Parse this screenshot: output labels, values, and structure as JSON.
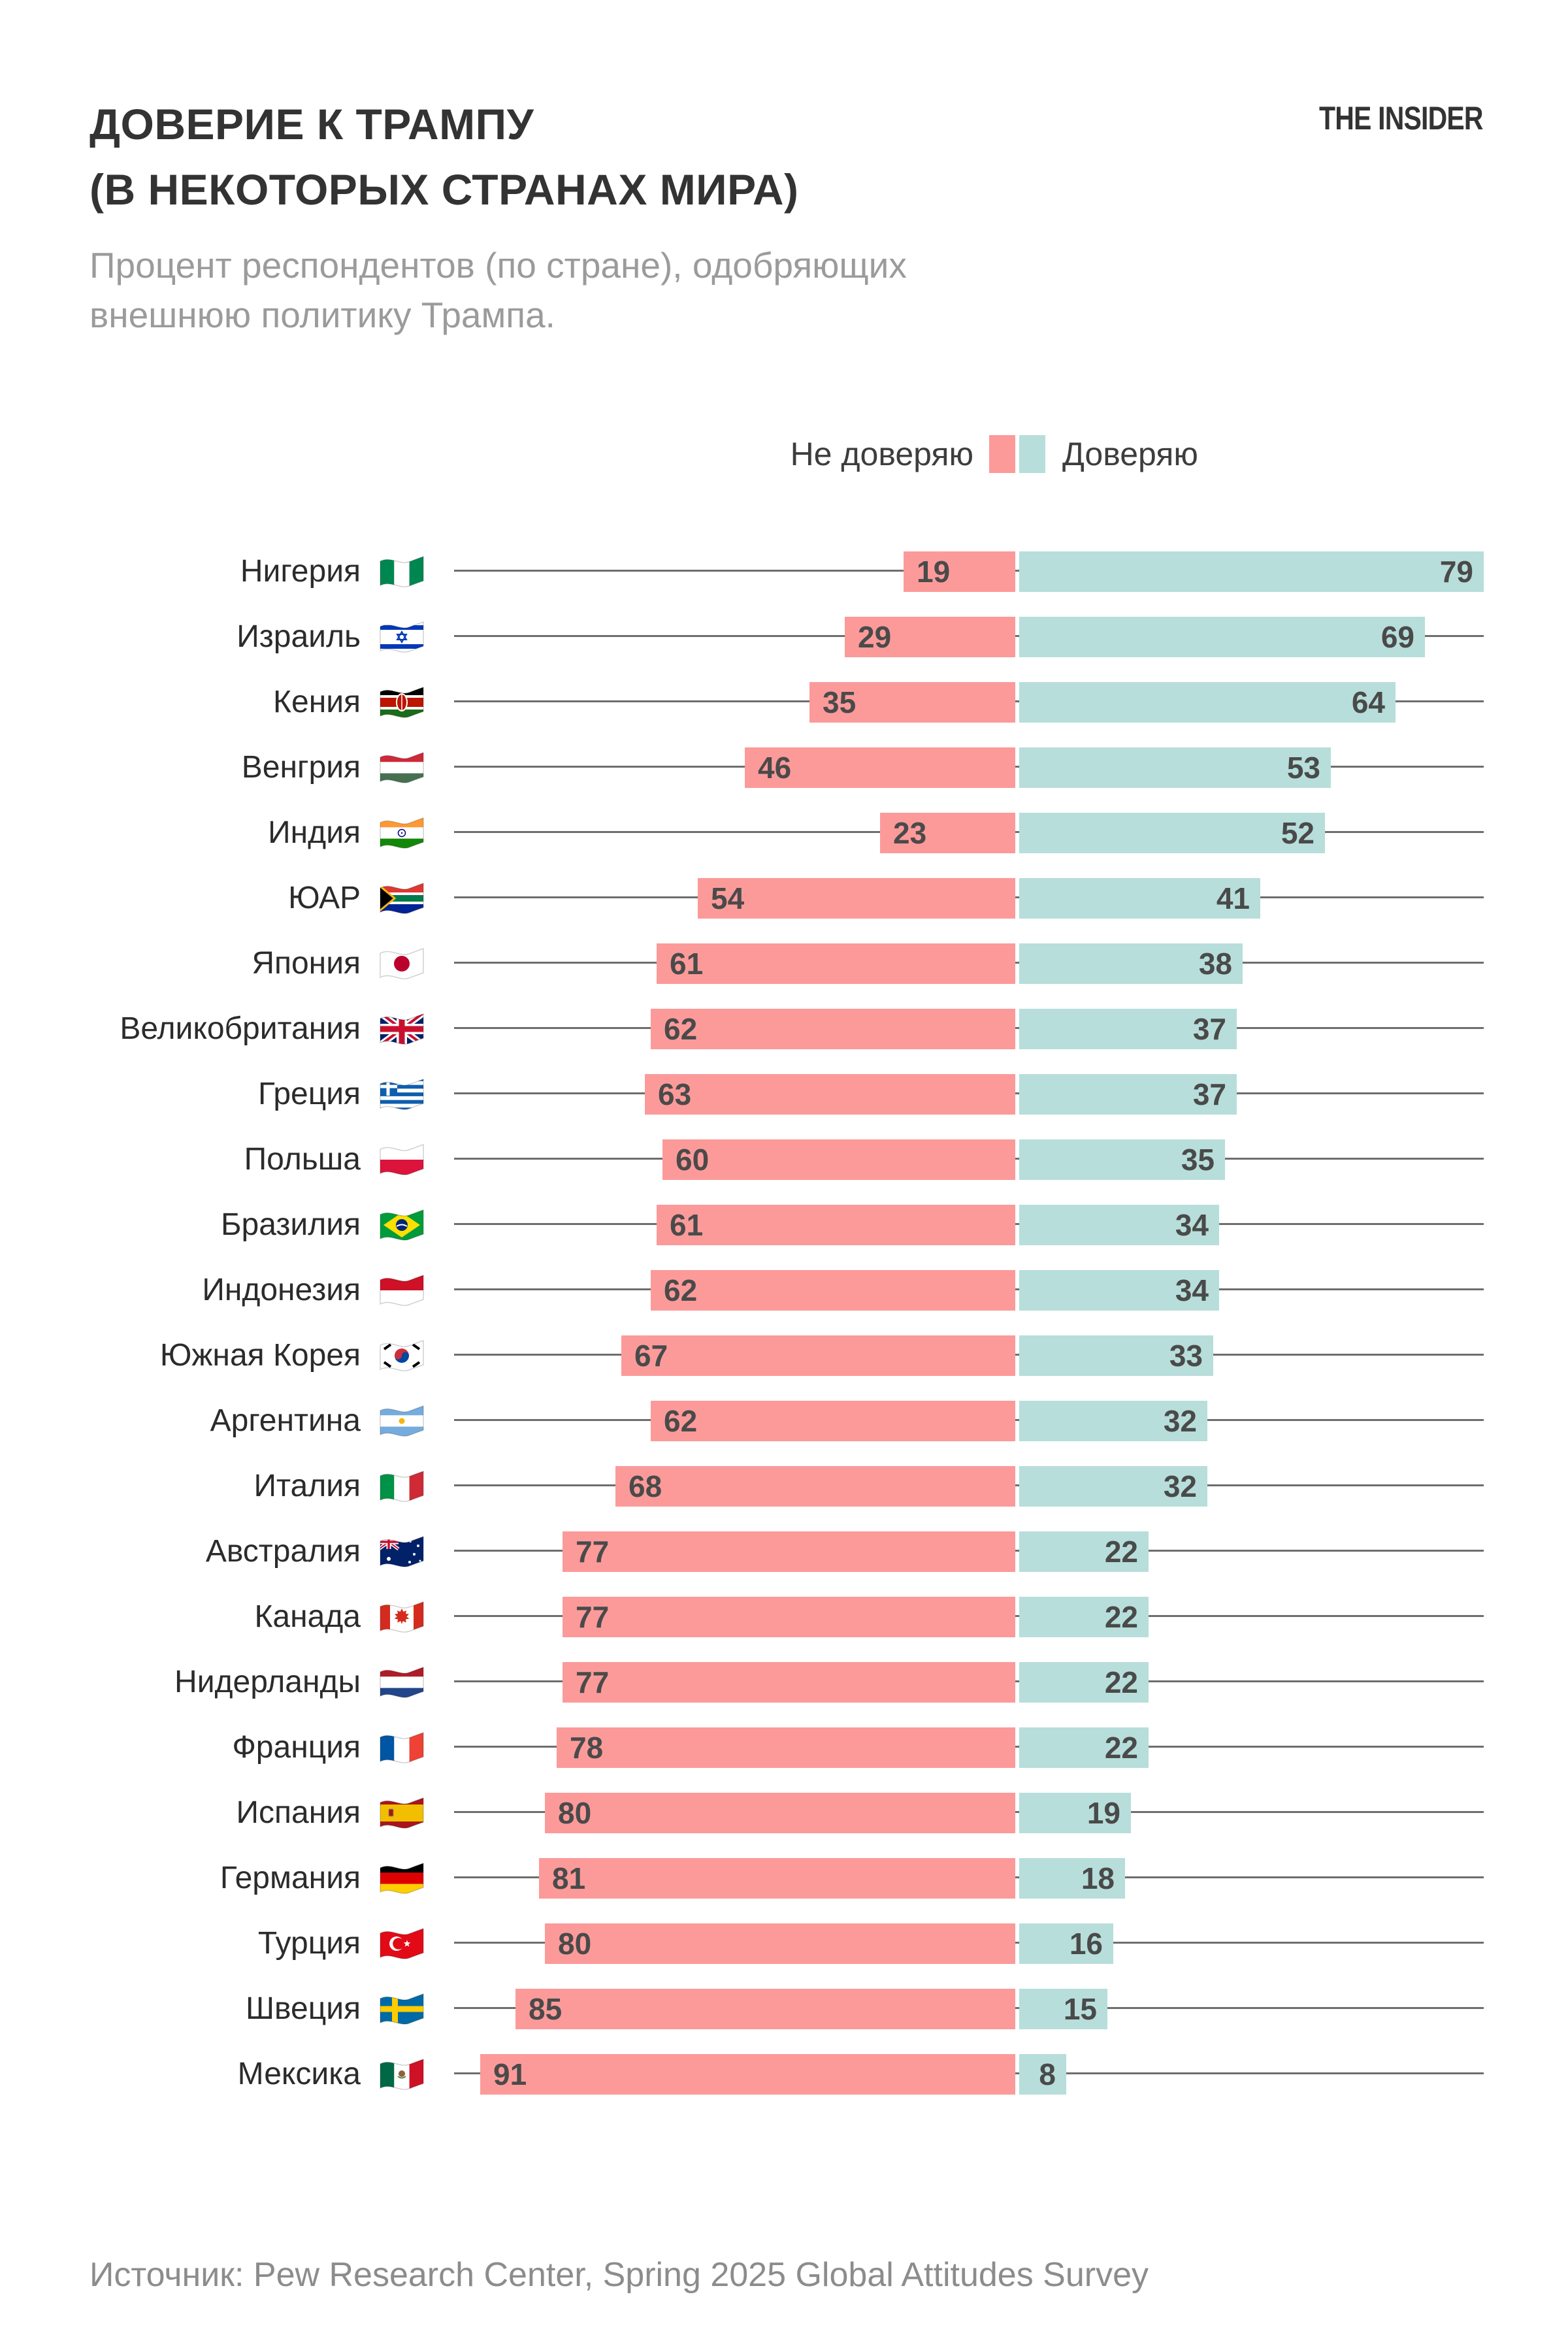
{
  "header": {
    "title_line1": "ДОВЕРИЕ К ТРАМПУ",
    "title_line2": "(В НЕКОТОРЫХ СТРАНАХ МИРА)",
    "logo": "THE INSIDER",
    "subtitle_line1": "Процент респондентов (по стране), одобряющих",
    "subtitle_line2": "внешнюю политику Трампа."
  },
  "legend": {
    "distrust_label": "Не доверяю",
    "trust_label": "Доверяю"
  },
  "colors": {
    "distrust": "#FC9A9A",
    "trust": "#B7DEDA",
    "track_line": "#6E6E6E",
    "value_text": "#4A4A4A",
    "title_text": "#333333",
    "subtitle_text": "#9B9B9B",
    "source_text": "#8C8C8C"
  },
  "source": "Источник: Pew Research Center, Spring 2025 Global Attitudes Survey",
  "chart_data": {
    "type": "bar",
    "subtype": "diverging-horizontal",
    "title": "Доверие к Трампу (в некоторых странах мира)",
    "unit": "percent",
    "value_range": [
      0,
      100
    ],
    "grid": false,
    "legend_position": "top-center",
    "categories": [
      "Нигерия",
      "Израиль",
      "Кения",
      "Венгрия",
      "Индия",
      "ЮАР",
      "Япония",
      "Великобритания",
      "Греция",
      "Польша",
      "Бразилия",
      "Индонезия",
      "Южная Корея",
      "Аргентина",
      "Италия",
      "Австралия",
      "Канада",
      "Нидерланды",
      "Франция",
      "Испания",
      "Германия",
      "Турция",
      "Швеция",
      "Мексика"
    ],
    "flags": [
      "ng",
      "il",
      "ke",
      "hu",
      "in",
      "za",
      "jp",
      "gb",
      "gr",
      "pl",
      "br",
      "id",
      "kr",
      "ar",
      "it",
      "au",
      "ca",
      "nl",
      "fr",
      "es",
      "de",
      "tr",
      "se",
      "mx"
    ],
    "series": [
      {
        "name": "Не доверяю",
        "color": "#FC9A9A",
        "values": [
          19,
          29,
          35,
          46,
          23,
          54,
          61,
          62,
          63,
          60,
          61,
          62,
          67,
          62,
          68,
          77,
          77,
          77,
          78,
          80,
          81,
          80,
          85,
          91
        ]
      },
      {
        "name": "Доверяю",
        "color": "#B7DEDA",
        "values": [
          79,
          69,
          64,
          53,
          52,
          41,
          38,
          37,
          37,
          35,
          34,
          34,
          33,
          32,
          32,
          22,
          22,
          22,
          22,
          19,
          18,
          16,
          15,
          8
        ]
      }
    ]
  }
}
